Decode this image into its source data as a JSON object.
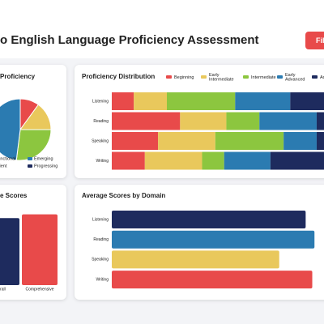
{
  "header": {
    "title": "o English Language Proficiency Assessment",
    "button": "Fil"
  },
  "chart_data": [
    {
      "type": "pie",
      "title": "Proficiency",
      "categories": [
        null,
        null,
        null,
        null
      ],
      "values": [
        10,
        15,
        27,
        48
      ],
      "colors": [
        "#e84a4a",
        "#e9c85c",
        "#8cc63f",
        "#2b7bb1"
      ],
      "legend": [
        {
          "name": "Functional",
          "color": null
        },
        {
          "name": "Emerging",
          "color": "#2b7bb1"
        },
        {
          "name": "ficient",
          "color": null
        },
        {
          "name": "Progressing",
          "color": "#1e2b5e"
        }
      ]
    },
    {
      "type": "stacked-hbar",
      "title": "Proficiency Distribution",
      "categories": [
        "Listening",
        "Reading",
        "Speaking",
        "Writing"
      ],
      "series": [
        {
          "name": "Beginning",
          "color": "#e84a4a",
          "values": [
            10,
            31,
            21,
            15
          ]
        },
        {
          "name": "Early Intermediate",
          "color": "#e9c85c",
          "values": [
            15,
            21,
            26,
            26
          ]
        },
        {
          "name": "Intermediate",
          "color": "#8cc63f",
          "values": [
            31,
            15,
            31,
            10
          ]
        },
        {
          "name": "Early Advanced",
          "color": "#2b7bb1",
          "values": [
            25,
            26,
            15,
            21
          ]
        },
        {
          "name": "Ad",
          "color": "#1e2b5e",
          "values": [
            19,
            7,
            7,
            28
          ]
        }
      ],
      "xlim": [
        0,
        100
      ]
    },
    {
      "type": "vbar",
      "title": "e Scores",
      "categories": [
        "erall",
        "Comprehensive"
      ],
      "values": [
        88,
        93
      ],
      "colors": [
        "#1e2b5e",
        "#e84a4a"
      ],
      "ylim": [
        0,
        100
      ]
    },
    {
      "type": "hbar",
      "title": "Average Scores by Domain",
      "categories": [
        "Listening",
        "Reading",
        "Speaking",
        "Writing"
      ],
      "values": [
        88,
        92,
        76,
        91
      ],
      "colors": [
        "#1e2b5e",
        "#2b7bb1",
        "#e9c85c",
        "#e84a4a"
      ],
      "xlim": [
        0,
        100
      ]
    }
  ]
}
